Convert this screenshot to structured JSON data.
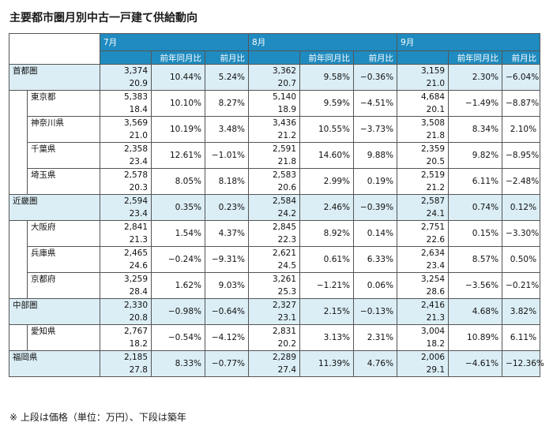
{
  "title": "主要都市圏月別中古一戸建て供給動向",
  "footnote": "※ 上段は価格（単位：万円）、下段は築年",
  "months": [
    "7月",
    "8月",
    "9月"
  ],
  "subheaders": {
    "yoy": "前年同月比",
    "mom": "前月比"
  },
  "rows": [
    {
      "name": "首都圏",
      "level": "region",
      "cells": [
        {
          "price": "3,374",
          "age": "20.9",
          "yoy": "10.44%",
          "mom": "5.24%"
        },
        {
          "price": "3,362",
          "age": "20.7",
          "yoy": "9.58%",
          "mom": "−0.36%"
        },
        {
          "price": "3,159",
          "age": "21.0",
          "yoy": "2.30%",
          "mom": "−6.04%"
        }
      ]
    },
    {
      "name": "東京都",
      "level": "pref",
      "cells": [
        {
          "price": "5,383",
          "age": "18.4",
          "yoy": "10.10%",
          "mom": "8.27%"
        },
        {
          "price": "5,140",
          "age": "18.9",
          "yoy": "9.59%",
          "mom": "−4.51%"
        },
        {
          "price": "4,684",
          "age": "20.1",
          "yoy": "−1.49%",
          "mom": "−8.87%"
        }
      ]
    },
    {
      "name": "神奈川県",
      "level": "pref",
      "cells": [
        {
          "price": "3,569",
          "age": "21.0",
          "yoy": "10.19%",
          "mom": "3.48%"
        },
        {
          "price": "3,436",
          "age": "21.2",
          "yoy": "10.55%",
          "mom": "−3.73%"
        },
        {
          "price": "3,508",
          "age": "21.8",
          "yoy": "8.34%",
          "mom": "2.10%"
        }
      ]
    },
    {
      "name": "千葉県",
      "level": "pref",
      "cells": [
        {
          "price": "2,358",
          "age": "23.4",
          "yoy": "12.61%",
          "mom": "−1.01%"
        },
        {
          "price": "2,591",
          "age": "21.8",
          "yoy": "14.60%",
          "mom": "9.88%"
        },
        {
          "price": "2,359",
          "age": "20.5",
          "yoy": "9.82%",
          "mom": "−8.95%"
        }
      ]
    },
    {
      "name": "埼玉県",
      "level": "pref",
      "cells": [
        {
          "price": "2,578",
          "age": "20.3",
          "yoy": "8.05%",
          "mom": "8.18%"
        },
        {
          "price": "2,583",
          "age": "20.6",
          "yoy": "2.99%",
          "mom": "0.19%"
        },
        {
          "price": "2,519",
          "age": "21.2",
          "yoy": "6.11%",
          "mom": "−2.48%"
        }
      ]
    },
    {
      "name": "近畿圏",
      "level": "region",
      "cells": [
        {
          "price": "2,594",
          "age": "23.4",
          "yoy": "0.35%",
          "mom": "0.23%"
        },
        {
          "price": "2,584",
          "age": "24.2",
          "yoy": "2.46%",
          "mom": "−0.39%"
        },
        {
          "price": "2,587",
          "age": "24.1",
          "yoy": "0.74%",
          "mom": "0.12%"
        }
      ]
    },
    {
      "name": "大阪府",
      "level": "pref",
      "cells": [
        {
          "price": "2,841",
          "age": "21.3",
          "yoy": "1.54%",
          "mom": "4.37%"
        },
        {
          "price": "2,845",
          "age": "22.3",
          "yoy": "8.92%",
          "mom": "0.14%"
        },
        {
          "price": "2,751",
          "age": "22.6",
          "yoy": "0.15%",
          "mom": "−3.30%"
        }
      ]
    },
    {
      "name": "兵庫県",
      "level": "pref",
      "cells": [
        {
          "price": "2,465",
          "age": "24.6",
          "yoy": "−0.24%",
          "mom": "−9.31%"
        },
        {
          "price": "2,621",
          "age": "24.5",
          "yoy": "0.61%",
          "mom": "6.33%"
        },
        {
          "price": "2,634",
          "age": "23.4",
          "yoy": "8.57%",
          "mom": "0.50%"
        }
      ]
    },
    {
      "name": "京都府",
      "level": "pref",
      "cells": [
        {
          "price": "3,259",
          "age": "28.4",
          "yoy": "1.62%",
          "mom": "9.03%"
        },
        {
          "price": "3,261",
          "age": "25.3",
          "yoy": "−1.21%",
          "mom": "0.06%"
        },
        {
          "price": "3,254",
          "age": "28.6",
          "yoy": "−3.56%",
          "mom": "−0.21%"
        }
      ]
    },
    {
      "name": "中部圏",
      "level": "region",
      "cells": [
        {
          "price": "2,330",
          "age": "20.8",
          "yoy": "−0.98%",
          "mom": "−0.64%"
        },
        {
          "price": "2,327",
          "age": "23.1",
          "yoy": "2.15%",
          "mom": "−0.13%"
        },
        {
          "price": "2,416",
          "age": "21.3",
          "yoy": "4.68%",
          "mom": "3.82%"
        }
      ]
    },
    {
      "name": "愛知県",
      "level": "pref",
      "cells": [
        {
          "price": "2,767",
          "age": "18.2",
          "yoy": "−0.54%",
          "mom": "−4.12%"
        },
        {
          "price": "2,831",
          "age": "20.2",
          "yoy": "3.13%",
          "mom": "2.31%"
        },
        {
          "price": "3,004",
          "age": "18.2",
          "yoy": "10.89%",
          "mom": "6.11%"
        }
      ]
    },
    {
      "name": "福岡県",
      "level": "region",
      "cells": [
        {
          "price": "2,185",
          "age": "27.8",
          "yoy": "8.33%",
          "mom": "−0.77%"
        },
        {
          "price": "2,289",
          "age": "27.4",
          "yoy": "11.39%",
          "mom": "4.76%"
        },
        {
          "price": "2,006",
          "age": "29.1",
          "yoy": "−4.61%",
          "mom": "−12.36%"
        }
      ]
    }
  ]
}
